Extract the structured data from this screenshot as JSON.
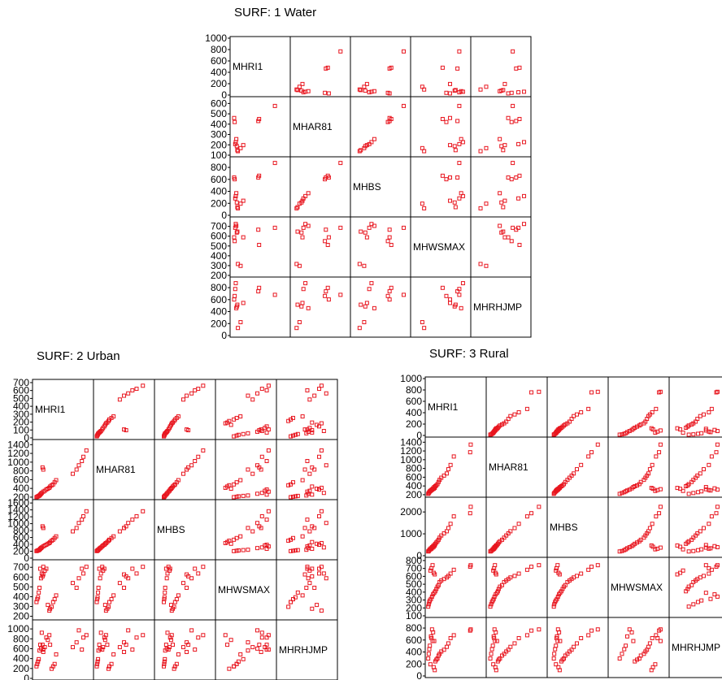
{
  "figure": {
    "type": "scatterplot-matrix",
    "variables": [
      "MHRI1",
      "MHAR81",
      "MHBS",
      "MHWSMAX",
      "MHRHJMP"
    ],
    "marker_color": "#e8161f",
    "frame_color": "#000000"
  },
  "chart_data": [
    {
      "type": "scatter",
      "title": "SURF:  1   Water",
      "variables": [
        "MHRI1",
        "MHAR81",
        "MHBS",
        "MHWSMAX",
        "MHRHJMP"
      ],
      "y_ticks": [
        [
          "0",
          "200",
          "400",
          "600",
          "800",
          "1000"
        ],
        [
          "100",
          "200",
          "300",
          "400",
          "500",
          "600"
        ],
        [
          "0",
          "200",
          "400",
          "600",
          "800"
        ],
        [
          "200",
          "300",
          "400",
          "500",
          "600",
          "700"
        ],
        [
          "0",
          "200",
          "400",
          "600",
          "800"
        ]
      ],
      "ranges": [
        [
          0,
          1000
        ],
        [
          100,
          650
        ],
        [
          0,
          950
        ],
        [
          200,
          780
        ],
        [
          0,
          950
        ]
      ],
      "observations": [
        [
          790,
          590,
          900,
          700,
          700
        ],
        [
          480,
          440,
          650,
          680,
          760
        ],
        [
          495,
          460,
          680,
          520,
          820
        ],
        [
          200,
          200,
          250,
          600,
          560
        ],
        [
          150,
          170,
          200,
          300,
          230
        ],
        [
          100,
          140,
          120,
          320,
          130
        ],
        [
          90,
          150,
          140,
          660,
          530
        ],
        [
          70,
          260,
          380,
          720,
          470
        ],
        [
          60,
          230,
          330,
          740,
          900
        ],
        [
          50,
          210,
          290,
          700,
          800
        ],
        [
          40,
          430,
          620,
          560,
          680
        ],
        [
          30,
          470,
          650,
          600,
          620
        ],
        [
          80,
          190,
          220,
          650,
          500
        ]
      ]
    },
    {
      "type": "scatter",
      "title": "SURF:  2   Urban",
      "variables": [
        "MHRI1",
        "MHAR81",
        "MHBS",
        "MHWSMAX",
        "MHRHJMP"
      ],
      "y_ticks": [
        [
          "0",
          "100",
          "200",
          "300",
          "400",
          "500",
          "600",
          "700"
        ],
        [
          "200",
          "400",
          "600",
          "800",
          "1000",
          "1200",
          "1400"
        ],
        [
          "0",
          "200",
          "400",
          "600",
          "800",
          "1000",
          "1200",
          "1400",
          "1600"
        ],
        [
          "200",
          "300",
          "400",
          "500",
          "600",
          "700"
        ],
        [
          "0",
          "200",
          "400",
          "600",
          "800",
          "1000"
        ]
      ],
      "ranges": [
        [
          0,
          720
        ],
        [
          180,
          1480
        ],
        [
          0,
          1650
        ],
        [
          180,
          760
        ],
        [
          0,
          1150
        ]
      ],
      "observations": [
        [
          680,
          1300,
          1400,
          720,
          900
        ],
        [
          640,
          1150,
          1250,
          650,
          850
        ],
        [
          620,
          1050,
          1150,
          700,
          600
        ],
        [
          580,
          950,
          1050,
          600,
          1000
        ],
        [
          550,
          850,
          900,
          500,
          750
        ],
        [
          500,
          750,
          800,
          550,
          650
        ],
        [
          280,
          600,
          650,
          420,
          500
        ],
        [
          260,
          550,
          600,
          380,
          300
        ],
        [
          240,
          500,
          550,
          350,
          250
        ],
        [
          220,
          480,
          520,
          300,
          200
        ],
        [
          200,
          450,
          480,
          280,
          700
        ],
        [
          190,
          420,
          450,
          260,
          900
        ],
        [
          170,
          400,
          430,
          320,
          800
        ],
        [
          150,
          380,
          400,
          700,
          850
        ],
        [
          130,
          350,
          380,
          680,
          650
        ],
        [
          110,
          330,
          350,
          720,
          600
        ],
        [
          90,
          300,
          320,
          650,
          950
        ],
        [
          80,
          280,
          300,
          600,
          620
        ],
        [
          70,
          260,
          280,
          700,
          700
        ],
        [
          60,
          240,
          250,
          500,
          580
        ],
        [
          50,
          230,
          240,
          450,
          400
        ],
        [
          40,
          220,
          230,
          400,
          350
        ],
        [
          30,
          210,
          220,
          380,
          300
        ],
        [
          20,
          200,
          210,
          350,
          250
        ],
        [
          100,
          900,
          950,
          620,
          700
        ],
        [
          110,
          850,
          900,
          640,
          550
        ]
      ]
    },
    {
      "type": "scatter",
      "title": "SURF:  3   Rural",
      "variables": [
        "MHRI1",
        "MHAR81",
        "MHBS",
        "MHWSMAX",
        "MHRHJMP"
      ],
      "y_ticks": [
        [
          "0",
          "200",
          "400",
          "600",
          "800",
          "1000"
        ],
        [
          "200",
          "400",
          "600",
          "800",
          "1000",
          "1200",
          "1400"
        ],
        [
          "0",
          "1000",
          "2000"
        ],
        [
          "100",
          "200",
          "300",
          "400",
          "500",
          "600",
          "700",
          "800"
        ],
        [
          "0",
          "200",
          "400",
          "600",
          "800"
        ]
      ],
      "ranges": [
        [
          0,
          1000
        ],
        [
          180,
          1480
        ],
        [
          0,
          2600
        ],
        [
          100,
          820
        ],
        [
          0,
          950
        ]
      ],
      "observations": [
        [
          790,
          1380,
          2300,
          760,
          800
        ],
        [
          780,
          1200,
          2000,
          740,
          780
        ],
        [
          480,
          1100,
          1850,
          700,
          700
        ],
        [
          420,
          900,
          1500,
          650,
          650
        ],
        [
          380,
          800,
          1300,
          620,
          560
        ],
        [
          350,
          700,
          1150,
          600,
          500
        ],
        [
          300,
          650,
          1050,
          580,
          450
        ],
        [
          250,
          600,
          950,
          560,
          420
        ],
        [
          220,
          550,
          850,
          540,
          380
        ],
        [
          200,
          500,
          750,
          500,
          350
        ],
        [
          180,
          450,
          680,
          480,
          300
        ],
        [
          160,
          420,
          620,
          450,
          280
        ],
        [
          140,
          400,
          560,
          420,
          250
        ],
        [
          120,
          380,
          500,
          400,
          600
        ],
        [
          100,
          350,
          450,
          380,
          750
        ],
        [
          80,
          320,
          400,
          350,
          800
        ],
        [
          60,
          300,
          350,
          320,
          680
        ],
        [
          40,
          280,
          300,
          300,
          520
        ],
        [
          30,
          260,
          260,
          280,
          460
        ],
        [
          20,
          240,
          220,
          250,
          380
        ],
        [
          10,
          220,
          200,
          220,
          300
        ],
        [
          90,
          330,
          380,
          760,
          600
        ],
        [
          70,
          310,
          330,
          720,
          650
        ],
        [
          50,
          290,
          300,
          690,
          200
        ],
        [
          110,
          340,
          420,
          660,
          150
        ],
        [
          130,
          360,
          480,
          640,
          100
        ]
      ]
    }
  ]
}
